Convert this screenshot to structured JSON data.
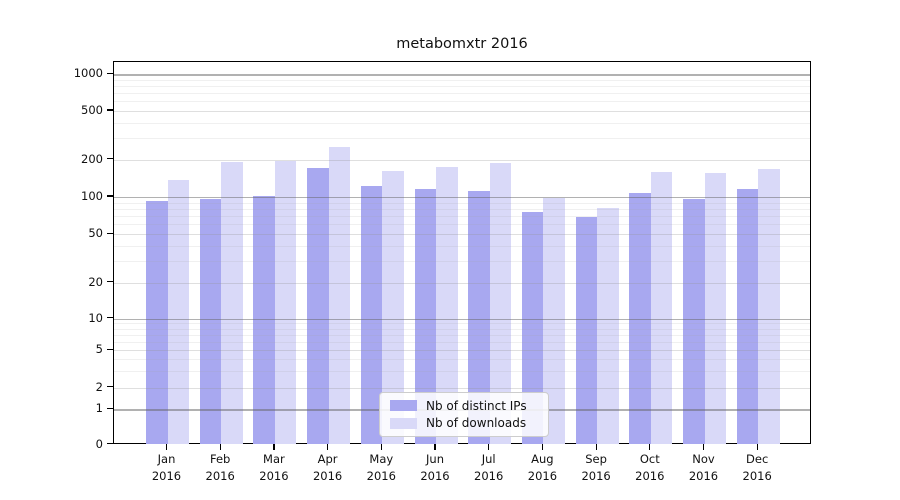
{
  "chart_data": {
    "type": "bar",
    "title": "metabomxtr 2016",
    "categories": [
      "Jan",
      "Feb",
      "Mar",
      "Apr",
      "May",
      "Jun",
      "Jul",
      "Aug",
      "Sep",
      "Oct",
      "Nov",
      "Dec"
    ],
    "year": "2016",
    "series": [
      {
        "name": "Nb of distinct IPs",
        "color": "#a8a8f0",
        "values": [
          93,
          97,
          101,
          170,
          122,
          115,
          111,
          76,
          69,
          107,
          96,
          117
        ]
      },
      {
        "name": "Nb of downloads",
        "color": "#d9d9f8",
        "values": [
          137,
          190,
          196,
          252,
          163,
          175,
          188,
          99,
          82,
          158,
          156,
          168
        ]
      }
    ],
    "yscale": "symlog",
    "yticks": [
      "0",
      "1",
      "2",
      "5",
      "10",
      "20",
      "50",
      "100",
      "200",
      "500",
      "1000"
    ],
    "ylim": [
      0,
      1400
    ],
    "xlabel": "",
    "ylabel": "",
    "grid": "horizontal, decade lines emphasized, drawn over bars",
    "legend_position": "inside lower-center"
  }
}
